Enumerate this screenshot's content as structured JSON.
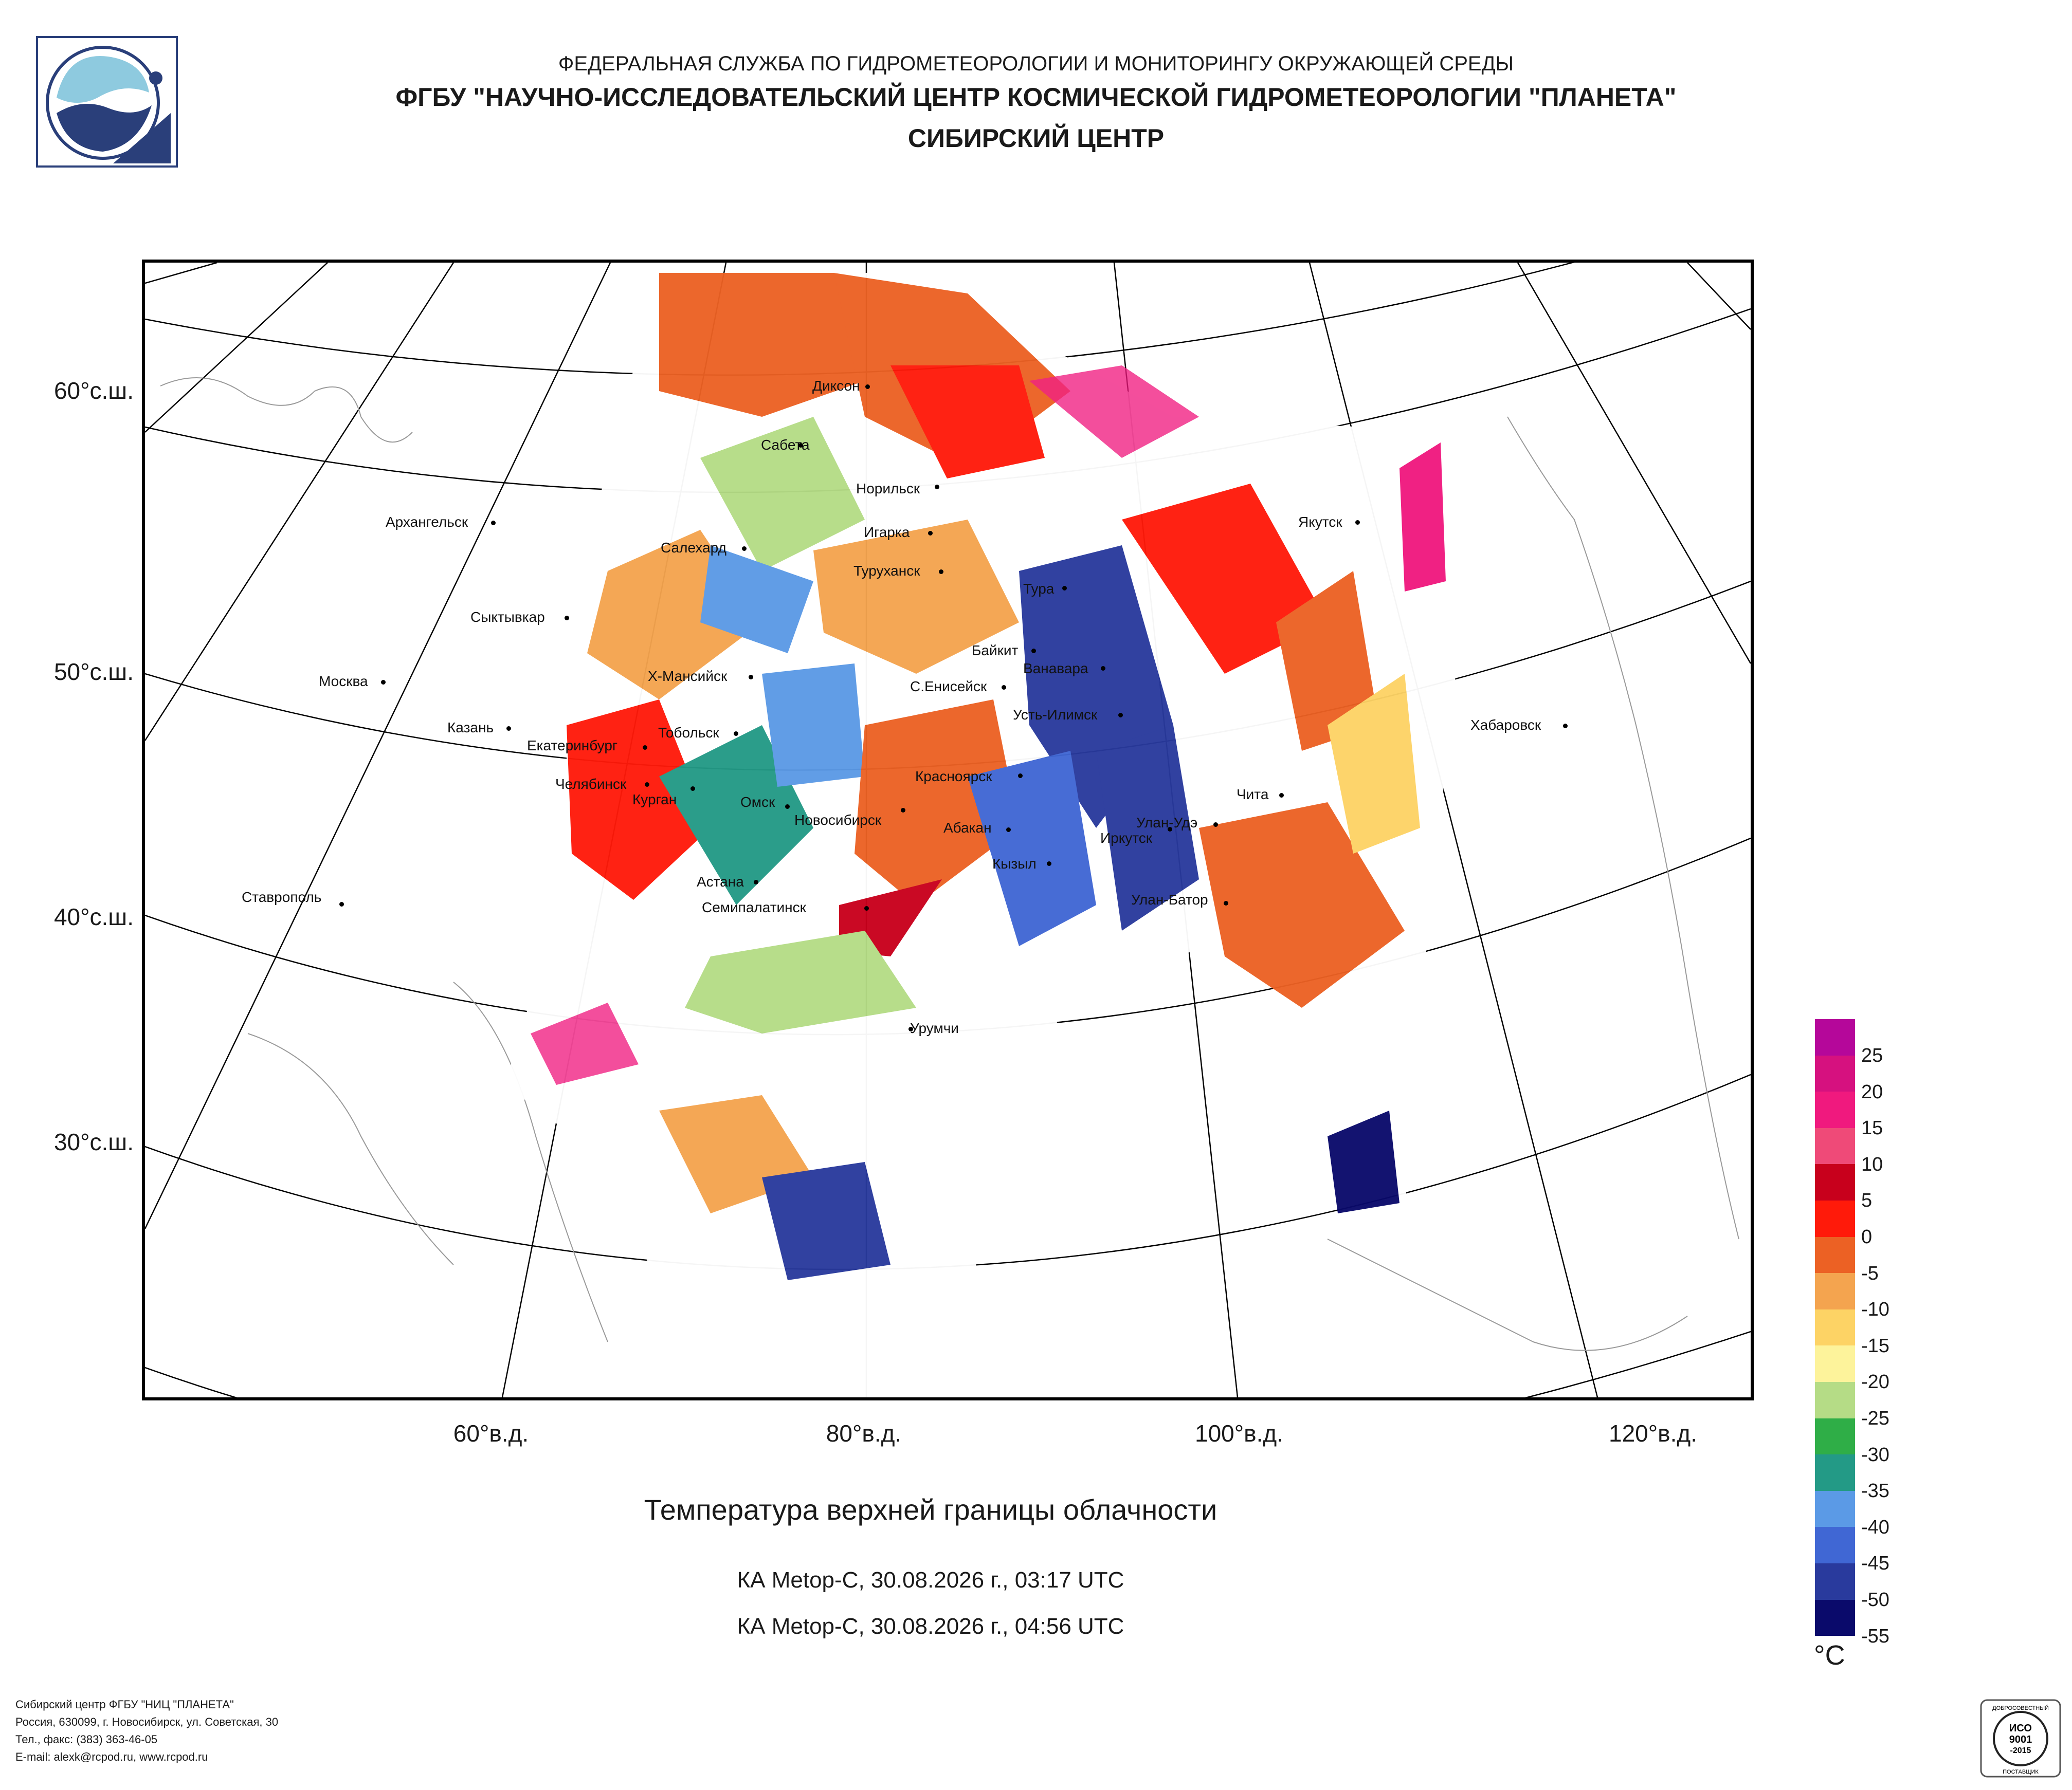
{
  "header": {
    "line1": "ФЕДЕРАЛЬНАЯ СЛУЖБА ПО ГИДРОМЕТЕОРОЛОГИИ И МОНИТОРИНГУ ОКРУЖАЮЩЕЙ СРЕДЫ",
    "line2": "ФГБУ \"НАУЧНО-ИССЛЕДОВАТЕЛЬСКИЙ ЦЕНТР КОСМИЧЕСКОЙ ГИДРОМЕТЕОРОЛОГИИ \"ПЛАНЕТА\"",
    "line3": "СИБИРСКИЙ ЦЕНТР"
  },
  "map": {
    "lat_labels": [
      "60°с.ш.",
      "50°с.ш.",
      "40°с.ш.",
      "30°с.ш."
    ],
    "lon_labels": [
      "60°в.д.",
      "80°в.д.",
      "100°в.д.",
      "120°в.д."
    ],
    "cities": [
      "Диксон",
      "Сабета",
      "Норильск",
      "Игарка",
      "Салехард",
      "Туруханск",
      "Тура",
      "Якутск",
      "Архангельск",
      "Сыктывкар",
      "Байкит",
      "Ванавара",
      "Х-Мансийск",
      "С.Енисейск",
      "Москва",
      "Усть-Илимск",
      "Тобольск",
      "Казань",
      "Екатеринбург",
      "Хабаровск",
      "Красноярск",
      "Челябинск",
      "Курган",
      "Омск",
      "Новосибирск",
      "Чита",
      "Абакан",
      "Улан-Удэ",
      "Иркутск",
      "Кызыл",
      "Астана",
      "Ставрополь",
      "Улан-Батор",
      "Семипалатинск",
      "Урумчи"
    ]
  },
  "caption": {
    "title": "Температура верхней границы облачности",
    "pass1": "КА Metop-C, 30.08.2026 г., 03:17 UTC",
    "pass2": "КА Metop-C, 30.08.2026 г., 04:56 UTC"
  },
  "legend": {
    "unit": "°C",
    "labels": [
      "25",
      "20",
      "15",
      "10",
      "5",
      "0",
      "-5",
      "-10",
      "-15",
      "-20",
      "-25",
      "-30",
      "-35",
      "-40",
      "-45",
      "-50",
      "-55"
    ],
    "colors": [
      "#b5079a",
      "#d6117f",
      "#f0197e",
      "#ef4a78",
      "#c8001c",
      "#ff1a0a",
      "#ec6124",
      "#f4a44f",
      "#fdd365",
      "#fdf39b",
      "#b5dc86",
      "#2fae47",
      "#239a86",
      "#5b9ae6",
      "#4067d4",
      "#293a9d",
      "#0a0a6b"
    ]
  },
  "footer": {
    "lines": [
      "Сибирский центр ФГБУ \"НИЦ \"ПЛАНЕТА\"",
      "Россия, 630099, г. Новосибирск, ул. Советская, 30",
      "Тел., факс: (383) 363-46-05",
      "E-mail: alexk@rcpod.ru, www.rcpod.ru"
    ]
  },
  "cert": {
    "arc_text": "ДОБРОСОВЕСТНЫЙ",
    "line1": "ИСО",
    "line2": "9001",
    "line3": "-2015",
    "bottom": "ПОСТАВЩИК"
  }
}
